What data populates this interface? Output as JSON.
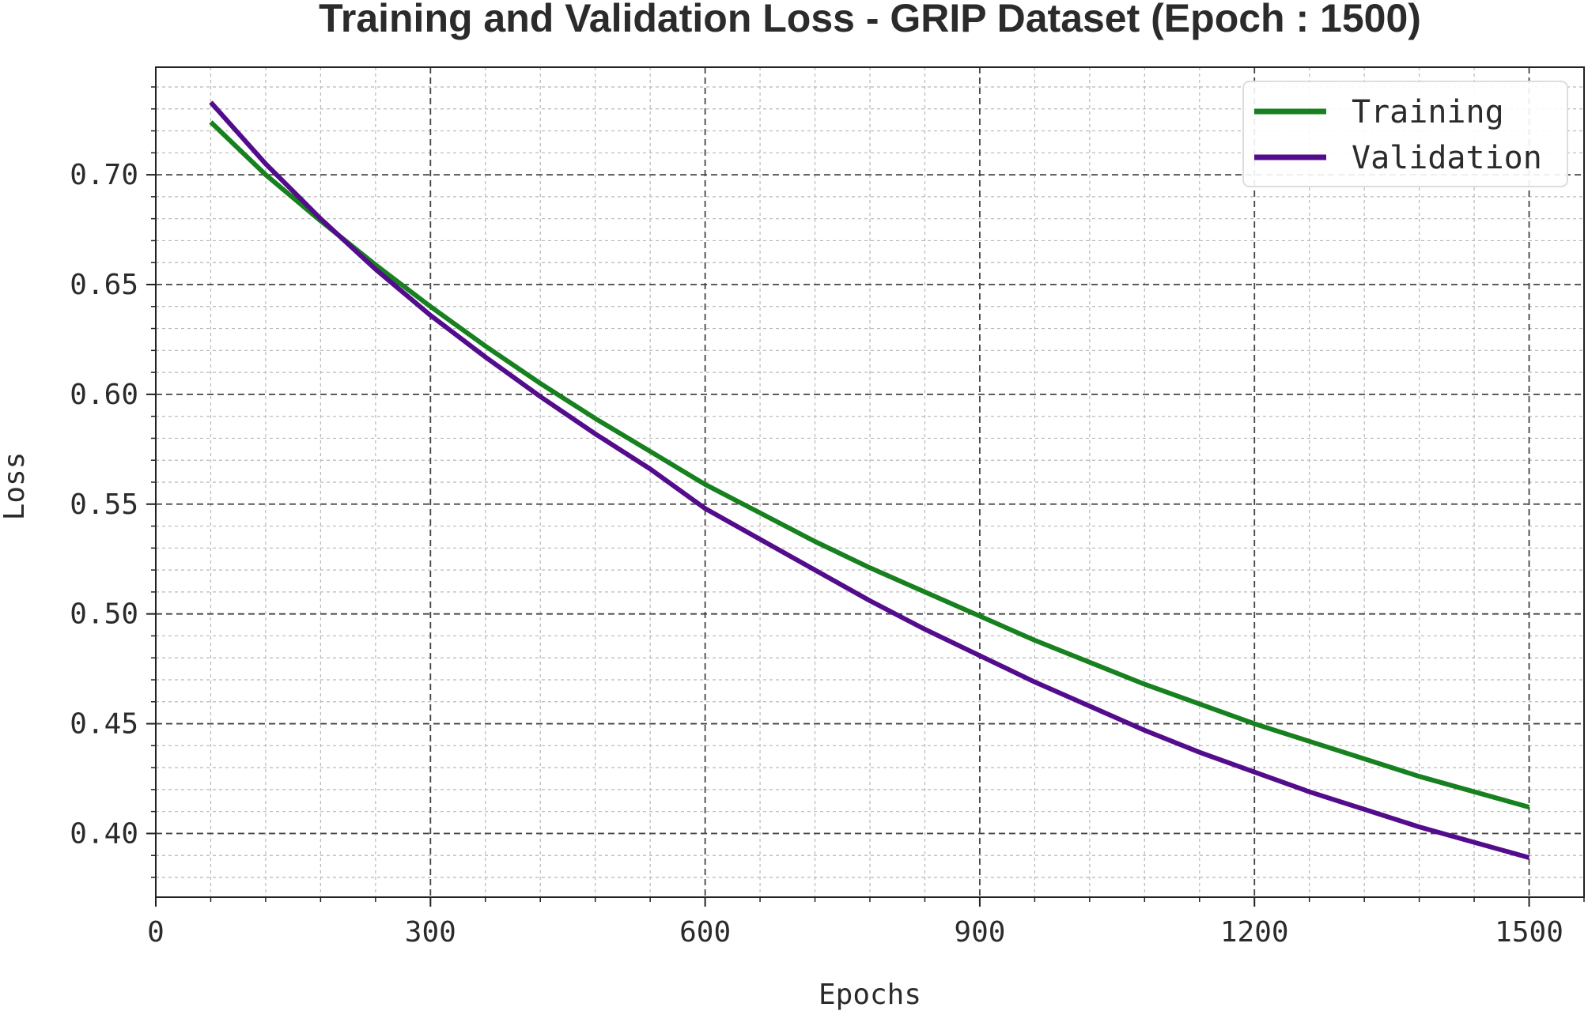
{
  "chart_data": {
    "type": "line",
    "title": "Training and Validation Loss - GRIP Dataset (Epoch : 1500)",
    "xlabel": "Epochs",
    "ylabel": "Loss",
    "xlim": [
      0,
      1560
    ],
    "ylim": [
      0.371,
      0.749
    ],
    "x_ticks": [
      0,
      300,
      600,
      900,
      1200,
      1500
    ],
    "x_tick_labels": [
      "0",
      "300",
      "600",
      "900",
      "1200",
      "1500"
    ],
    "y_ticks": [
      0.4,
      0.45,
      0.5,
      0.55,
      0.6,
      0.65,
      0.7
    ],
    "y_tick_labels": [
      "0.40",
      "0.45",
      "0.50",
      "0.55",
      "0.60",
      "0.65",
      "0.70"
    ],
    "x_minor_step": 60,
    "y_minor_step": 0.01,
    "grid": true,
    "legend_position": "top-right",
    "x": [
      60,
      120,
      180,
      240,
      300,
      360,
      420,
      480,
      540,
      600,
      660,
      720,
      780,
      840,
      900,
      960,
      1020,
      1080,
      1140,
      1200,
      1260,
      1320,
      1380,
      1440,
      1500
    ],
    "series": [
      {
        "name": "Training",
        "color": "#17801f",
        "values": [
          0.724,
          0.7,
          0.679,
          0.659,
          0.64,
          0.622,
          0.605,
          0.589,
          0.574,
          0.559,
          0.546,
          0.533,
          0.521,
          0.51,
          0.499,
          0.488,
          0.478,
          0.468,
          0.459,
          0.45,
          0.442,
          0.434,
          0.426,
          0.419,
          0.412
        ]
      },
      {
        "name": "Validation",
        "color": "#530c8c",
        "values": [
          0.733,
          0.705,
          0.68,
          0.657,
          0.636,
          0.617,
          0.599,
          0.582,
          0.566,
          0.548,
          0.534,
          0.52,
          0.506,
          0.493,
          0.481,
          0.469,
          0.458,
          0.447,
          0.437,
          0.428,
          0.419,
          0.411,
          0.403,
          0.396,
          0.389
        ]
      }
    ]
  }
}
